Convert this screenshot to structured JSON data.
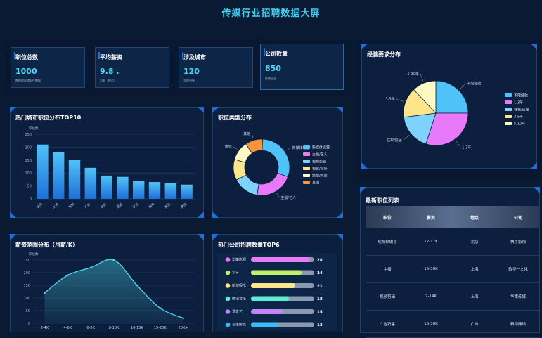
{
  "header": {
    "title": "传媒行业招聘数据大屏"
  },
  "stats": [
    {
      "label": "职位总数",
      "value": "1000",
      "sub": "数据库存储职位数据"
    },
    {
      "label": "平均薪资",
      "value": "9.8 .",
      "sub": "月薪（K/月）"
    },
    {
      "label": "涉及城市",
      "value": "120",
      "sub": "全国分布"
    },
    {
      "label": "公司数量",
      "value": "850",
      "sub": "招聘企业"
    }
  ],
  "panels": {
    "city": "热门城市职位分布TOP10",
    "jobtype": "职位类型分布",
    "experience": "经验要求分布",
    "salary": "薪资范围分布（月薪/K）",
    "company": "热门公司招聘数量TOP6",
    "latest": "最新职位列表"
  },
  "chart_data": [
    {
      "type": "bar",
      "title": "热门城市职位分布TOP10",
      "ylabel": "职位数",
      "categories": [
        "北京",
        "上海",
        "深圳",
        "广州",
        "杭州",
        "成都",
        "武汉",
        "西安",
        "南京",
        "重庆"
      ],
      "values": [
        210,
        180,
        150,
        120,
        90,
        85,
        70,
        65,
        60,
        55
      ],
      "ylim": [
        0,
        250
      ],
      "yticks": [
        "0",
        "50",
        "100",
        "150",
        "200",
        "250"
      ]
    },
    {
      "type": "pie",
      "title": "职位类型分布",
      "labels": [
        "新媒体运营",
        "主播/艺人",
        "视频剪辑",
        "视觉/设计",
        "策划/文案",
        "其他"
      ],
      "slice_labels": [
        "新媒体运营",
        "主播/艺人",
        "",
        "",
        "策划",
        "其他"
      ],
      "values": [
        30,
        22,
        15,
        12,
        11,
        10
      ],
      "colors": [
        "#4fc3f7",
        "#e879f9",
        "#7dd3fc",
        "#fde68a",
        "#fef9c3",
        "#fb923c"
      ]
    },
    {
      "type": "pie",
      "title": "经验要求分布",
      "labels": [
        "不限经验",
        "1-3年",
        "在校/应届",
        "3-5年",
        "5-10年"
      ],
      "slice_labels": [
        "不限经验",
        "1-3年",
        "在校/应届",
        "3-5年",
        "5-10年"
      ],
      "values": [
        25,
        30,
        18,
        15,
        12
      ],
      "colors": [
        "#4fc3f7",
        "#e879f9",
        "#7dd3fc",
        "#fde68a",
        "#fef9c3"
      ]
    },
    {
      "type": "area",
      "title": "薪资范围分布（月薪/K）",
      "ylabel": "职位数",
      "categories": [
        "2-4K",
        "4-6K",
        "6-8K",
        "8-10K",
        "10-15K",
        "15-20K",
        "20K+"
      ],
      "values": [
        120,
        190,
        220,
        250,
        150,
        60,
        20
      ],
      "ylim": [
        0,
        250
      ],
      "yticks": [
        "0",
        "50",
        "100",
        "150",
        "200",
        "250"
      ]
    },
    {
      "type": "bar",
      "title": "热门公司招聘数量TOP6",
      "categories": [
        "华策影视",
        "字节",
        "新浪娱乐",
        "腾讯音乐",
        "爱奇艺",
        "芒果传媒"
      ],
      "values": [
        28,
        24,
        21,
        18,
        15,
        13
      ],
      "max": 30,
      "colors": [
        "#e879f9",
        "#bef264",
        "#fde68a",
        "#5eead4",
        "#c084fc",
        "#38bdf8"
      ]
    }
  ],
  "table": {
    "headers": [
      "职位",
      "薪资",
      "地点",
      "公司"
    ],
    "rows": [
      [
        "短视频编导",
        "12-17K",
        "北京",
        "快手影视"
      ],
      [
        "主播",
        "15-30K",
        "上海",
        "歌华一文化"
      ],
      [
        "视频剪辑",
        "7-14K",
        "上海",
        "华策传媒"
      ],
      [
        "广告销售",
        "15-30K",
        "广州",
        "新华网络"
      ]
    ]
  },
  "colors": {
    "accent": "#3fd1f2",
    "bar": "#2f9bf0",
    "panel": "#0c1f3e",
    "border": "#1d3f6e"
  }
}
